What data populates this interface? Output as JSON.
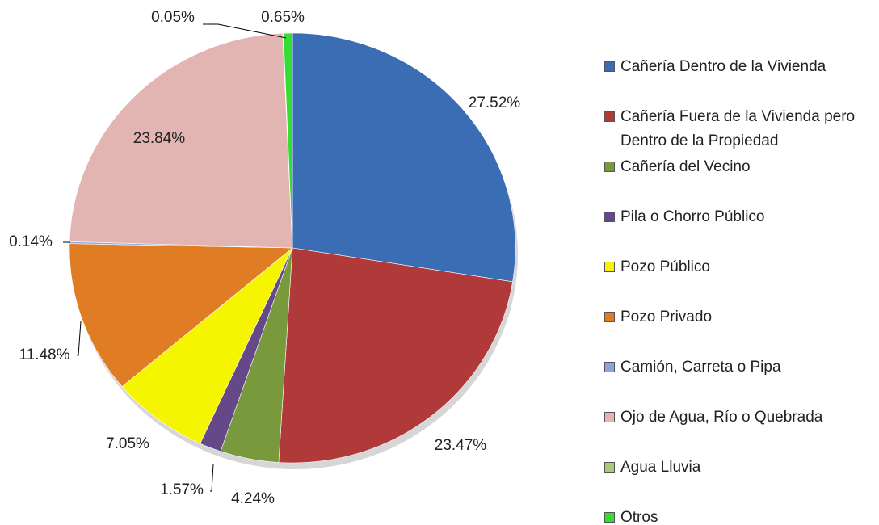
{
  "chart_data": {
    "type": "pie",
    "categories": [
      "Cañería Dentro de la Vivienda",
      "Cañería Fuera de la Vivienda pero Dentro de la Propiedad",
      "Cañería del Vecino",
      "Pila o Chorro Público",
      "Pozo Público",
      "Pozo Privado",
      "Camión, Carreta o Pipa",
      "Ojo de Agua, Río o Quebrada",
      "Agua Lluvia",
      "Otros"
    ],
    "values": [
      27.52,
      23.47,
      4.24,
      1.57,
      7.05,
      11.48,
      0.14,
      23.84,
      0.05,
      0.65
    ],
    "value_labels": [
      "27.52%",
      "23.47%",
      "4.24%",
      "1.57%",
      "7.05%",
      "11.48%",
      "0.14%",
      "23.84%",
      "0.05%",
      "0.65%"
    ],
    "colors": [
      "#3a6db3",
      "#b0393a",
      "#789a3d",
      "#644888",
      "#f5f500",
      "#e07c24",
      "#8aa6d6",
      "#e2b5b3",
      "#a6cb79",
      "#33dd33"
    ],
    "legend": "right"
  }
}
